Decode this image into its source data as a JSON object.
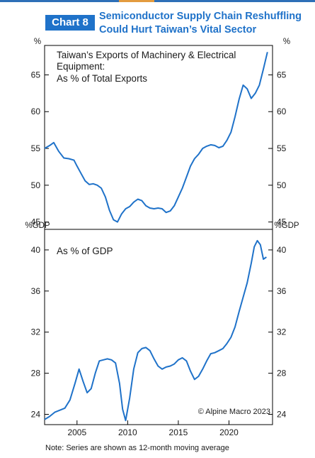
{
  "header": {
    "tag": "Chart 8",
    "title_line1": "Semiconductor Supply Chain Reshuffling",
    "title_line2": "Could Hurt Taiwan’s Vital Sector"
  },
  "colors": {
    "accent": "#1f72c9",
    "line": "#1f72c9",
    "axis": "#000000"
  },
  "note": "Note: Series are shown as 12-month moving average",
  "copyright": "© Alpine Macro 2023",
  "chart_data": [
    {
      "type": "line",
      "title": "Taiwan’s Exports of Machinery & Electrical Equipment:",
      "subtitle": "As % of Total Exports",
      "unit_left": "%",
      "unit_right": "%",
      "ylim": [
        44,
        69
      ],
      "yticks": [
        45,
        50,
        55,
        60,
        65
      ],
      "xlim": [
        2001.8,
        2024.3
      ],
      "x": [
        2001.8,
        2002.3,
        2002.7,
        2003.2,
        2003.7,
        2004.2,
        2004.7,
        2005.0,
        2005.4,
        2005.8,
        2006.2,
        2006.6,
        2007.0,
        2007.4,
        2007.8,
        2008.2,
        2008.6,
        2009.0,
        2009.4,
        2009.8,
        2010.2,
        2010.6,
        2011.0,
        2011.4,
        2011.8,
        2012.2,
        2012.6,
        2013.0,
        2013.4,
        2013.8,
        2014.2,
        2014.6,
        2015.0,
        2015.4,
        2015.8,
        2016.2,
        2016.6,
        2017.0,
        2017.4,
        2017.8,
        2018.2,
        2018.6,
        2019.0,
        2019.4,
        2019.8,
        2020.2,
        2020.6,
        2021.0,
        2021.4,
        2021.8,
        2022.2,
        2022.6,
        2023.0,
        2023.4,
        2023.8
      ],
      "series": [
        {
          "values": [
            55.0,
            55.4,
            55.8,
            54.6,
            53.7,
            53.6,
            53.4,
            52.6,
            51.6,
            50.6,
            50.1,
            50.2,
            50.0,
            49.6,
            48.4,
            46.6,
            45.3,
            45.0,
            46.1,
            46.8,
            47.1,
            47.7,
            48.1,
            47.9,
            47.2,
            46.9,
            46.8,
            46.9,
            46.8,
            46.3,
            46.5,
            47.2,
            48.4,
            49.6,
            51.1,
            52.6,
            53.6,
            54.2,
            55.0,
            55.3,
            55.5,
            55.4,
            55.1,
            55.3,
            56.1,
            57.2,
            59.3,
            61.7,
            63.6,
            63.1,
            61.8,
            62.5,
            63.6,
            65.8,
            68.1
          ]
        }
      ]
    },
    {
      "type": "line",
      "title": "",
      "subtitle": "As % of GDP",
      "unit_left": "%GDP",
      "unit_right": "%GDP",
      "ylim": [
        23,
        42
      ],
      "yticks": [
        24,
        28,
        32,
        36,
        40
      ],
      "xlim": [
        2001.8,
        2024.3
      ],
      "xticks": [
        2005,
        2010,
        2015,
        2020
      ],
      "x": [
        2001.8,
        2002.3,
        2002.8,
        2003.3,
        2003.8,
        2004.3,
        2004.8,
        2005.2,
        2005.6,
        2006.0,
        2006.4,
        2006.8,
        2007.2,
        2007.6,
        2008.0,
        2008.4,
        2008.8,
        2009.2,
        2009.5,
        2009.8,
        2010.2,
        2010.6,
        2011.0,
        2011.4,
        2011.8,
        2012.2,
        2012.6,
        2013.0,
        2013.4,
        2013.8,
        2014.2,
        2014.6,
        2015.0,
        2015.4,
        2015.8,
        2016.2,
        2016.6,
        2017.0,
        2017.4,
        2017.8,
        2018.2,
        2018.6,
        2019.0,
        2019.4,
        2019.8,
        2020.2,
        2020.6,
        2021.0,
        2021.4,
        2021.8,
        2022.2,
        2022.5,
        2022.8,
        2023.1,
        2023.4,
        2023.7
      ],
      "series": [
        {
          "values": [
            23.5,
            23.8,
            24.2,
            24.4,
            24.6,
            25.4,
            27.0,
            28.4,
            27.2,
            26.1,
            26.5,
            28.0,
            29.2,
            29.3,
            29.4,
            29.3,
            29.0,
            27.0,
            24.5,
            23.4,
            25.6,
            28.4,
            30.0,
            30.4,
            30.5,
            30.2,
            29.4,
            28.7,
            28.4,
            28.6,
            28.7,
            28.9,
            29.3,
            29.5,
            29.2,
            28.2,
            27.4,
            27.7,
            28.4,
            29.2,
            29.9,
            30.0,
            30.2,
            30.4,
            30.9,
            31.5,
            32.5,
            34.0,
            35.4,
            36.8,
            38.7,
            40.3,
            40.9,
            40.5,
            39.1,
            39.3
          ]
        }
      ]
    }
  ]
}
